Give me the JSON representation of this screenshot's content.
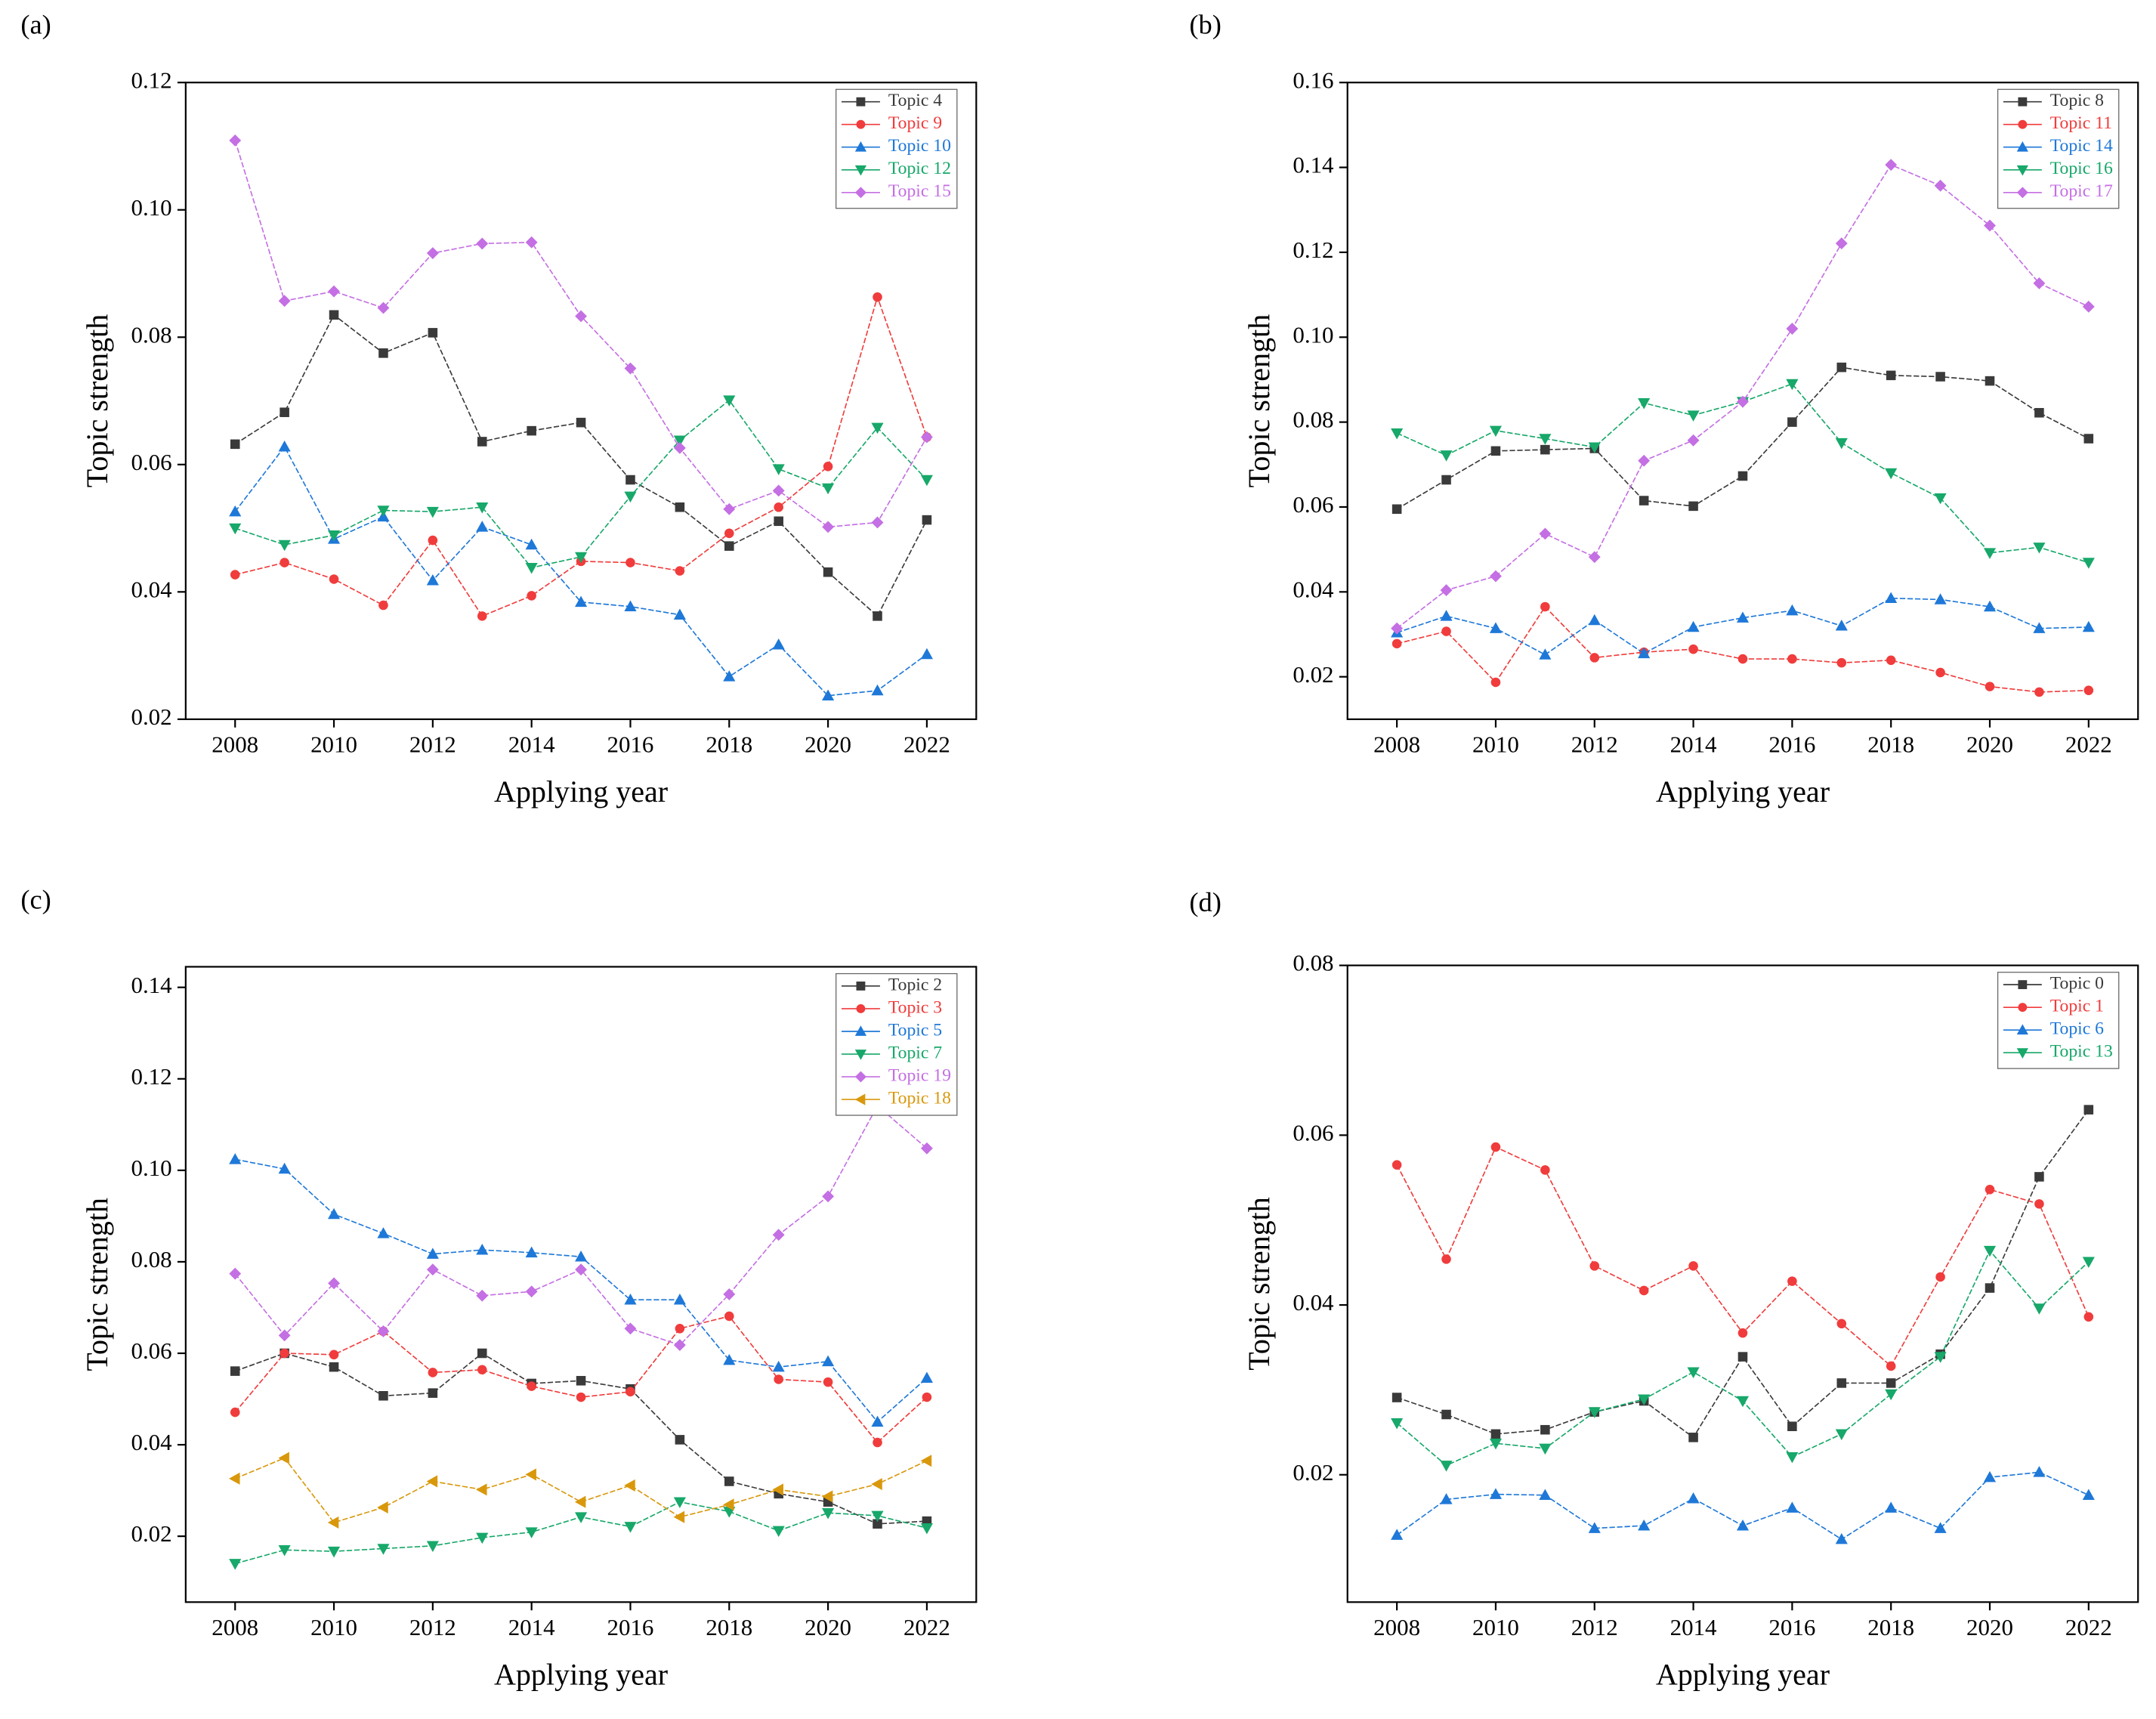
{
  "chart_data": [
    {
      "type": "line",
      "label": "(a)",
      "x_label": "Applying year",
      "y_label": "Topic strength",
      "x": [
        2008,
        2009,
        2010,
        2011,
        2012,
        2013,
        2014,
        2015,
        2016,
        2017,
        2018,
        2019,
        2020,
        2021,
        2022
      ],
      "xlim": [
        2007,
        2023
      ],
      "xticks": [
        2008,
        2010,
        2012,
        2014,
        2016,
        2018,
        2020,
        2022
      ],
      "ylim": [
        0.02,
        0.12
      ],
      "yticks": [
        0.02,
        0.04,
        0.06,
        0.08,
        {
          "value": 0.1,
          "label": "0.10"
        },
        0.12
      ],
      "legend": "upper right",
      "series": [
        {
          "name": "Topic 4",
          "color": "#3a3a3a",
          "marker": "square",
          "values": [
            0.0632,
            0.0682,
            0.0835,
            0.0775,
            0.0807,
            0.0636,
            0.0653,
            0.0666,
            0.0576,
            0.0533,
            0.0472,
            0.0511,
            0.0431,
            0.0362,
            0.0513
          ]
        },
        {
          "name": "Topic 9",
          "color": "#f03c3c",
          "marker": "circle",
          "values": [
            0.0427,
            0.0446,
            0.042,
            0.0379,
            0.0481,
            0.0362,
            0.0394,
            0.0448,
            0.0446,
            0.0433,
            0.0492,
            0.0533,
            0.0597,
            0.0863,
            0.0643
          ]
        },
        {
          "name": "Topic 10",
          "color": "#1e78d8",
          "marker": "triangle-up",
          "values": [
            0.0526,
            0.0628,
            0.0483,
            0.0518,
            0.0418,
            0.0502,
            0.0474,
            0.0384,
            0.0377,
            0.0364,
            0.0267,
            0.0317,
            0.0237,
            0.0245,
            0.0302
          ]
        },
        {
          "name": "Topic 12",
          "color": "#17a86a",
          "marker": "triangle-down",
          "values": [
            0.05,
            0.0474,
            0.0489,
            0.0528,
            0.0526,
            0.0533,
            0.0438,
            0.0455,
            0.055,
            0.0638,
            0.0701,
            0.0593,
            0.0563,
            0.0658,
            0.0576
          ]
        },
        {
          "name": "Topic 15",
          "color": "#c46fe3",
          "marker": "diamond",
          "values": [
            0.1109,
            0.0857,
            0.0872,
            0.0846,
            0.0932,
            0.0947,
            0.0949,
            0.0833,
            0.0751,
            0.0626,
            0.053,
            0.0559,
            0.0502,
            0.0509,
            0.0643
          ]
        }
      ]
    },
    {
      "type": "line",
      "label": "(b)",
      "x_label": "Applying year",
      "y_label": "Topic strength",
      "x": [
        2008,
        2009,
        2010,
        2011,
        2012,
        2013,
        2014,
        2015,
        2016,
        2017,
        2018,
        2019,
        2020,
        2021,
        2022
      ],
      "xlim": [
        2007,
        2023
      ],
      "xticks": [
        2008,
        2010,
        2012,
        2014,
        2016,
        2018,
        2020,
        2022
      ],
      "ylim": [
        0.01,
        0.16
      ],
      "yticks": [
        0.02,
        0.04,
        0.06,
        0.08,
        {
          "value": 0.1,
          "label": "0.10"
        },
        0.12,
        0.14,
        0.16
      ],
      "legend": "upper right",
      "series": [
        {
          "name": "Topic 8",
          "color": "#3a3a3a",
          "marker": "square",
          "values": [
            0.0595,
            0.0664,
            0.0732,
            0.0735,
            0.0738,
            0.0615,
            0.0602,
            0.0673,
            0.08,
            0.0929,
            0.091,
            0.0907,
            0.0897,
            0.0822,
            0.0761
          ]
        },
        {
          "name": "Topic 11",
          "color": "#f03c3c",
          "marker": "circle",
          "values": [
            0.0278,
            0.0307,
            0.0187,
            0.0365,
            0.0245,
            0.0258,
            0.0265,
            0.0242,
            0.0242,
            0.0233,
            0.0239,
            0.021,
            0.0177,
            0.0164,
            0.0168
          ]
        },
        {
          "name": "Topic 14",
          "color": "#1e78d8",
          "marker": "triangle-up",
          "values": [
            0.0304,
            0.0343,
            0.0314,
            0.0252,
            0.0333,
            0.0255,
            0.0317,
            0.0339,
            0.0356,
            0.032,
            0.0385,
            0.0382,
            0.0365,
            0.0314,
            0.0317
          ]
        },
        {
          "name": "Topic 16",
          "color": "#17a86a",
          "marker": "triangle-down",
          "values": [
            0.0774,
            0.0722,
            0.078,
            0.0761,
            0.0741,
            0.0845,
            0.0816,
            0.0848,
            0.089,
            0.0751,
            0.068,
            0.0621,
            0.0492,
            0.0505,
            0.0469
          ]
        },
        {
          "name": "Topic 17",
          "color": "#c46fe3",
          "marker": "diamond",
          "values": [
            0.0314,
            0.0404,
            0.0437,
            0.0537,
            0.0482,
            0.0709,
            0.0757,
            0.0848,
            0.102,
            0.1221,
            0.1406,
            0.1357,
            0.1263,
            0.1127,
            0.1072
          ]
        }
      ]
    },
    {
      "type": "line",
      "label": "(c)",
      "x_label": "Applying year",
      "y_label": "Topic strength",
      "x": [
        2008,
        2009,
        2010,
        2011,
        2012,
        2013,
        2014,
        2015,
        2016,
        2017,
        2018,
        2019,
        2020,
        2021,
        2022
      ],
      "xlim": [
        2007,
        2023
      ],
      "xticks": [
        2008,
        2010,
        2012,
        2014,
        2016,
        2018,
        2020,
        2022
      ],
      "ylim": [
        0.0056,
        0.1445
      ],
      "yticks": [
        0.02,
        0.04,
        0.06,
        0.08,
        {
          "value": 0.1,
          "label": "0.10"
        },
        0.12,
        0.14
      ],
      "legend": "upper right",
      "series": [
        {
          "name": "Topic 2",
          "color": "#3a3a3a",
          "marker": "square",
          "values": [
            0.0561,
            0.06,
            0.057,
            0.0507,
            0.0513,
            0.06,
            0.0534,
            0.054,
            0.0522,
            0.0411,
            0.032,
            0.0293,
            0.0275,
            0.0227,
            0.0233
          ]
        },
        {
          "name": "Topic 3",
          "color": "#f03c3c",
          "marker": "circle",
          "values": [
            0.0471,
            0.06,
            0.0597,
            0.0648,
            0.0558,
            0.0564,
            0.0528,
            0.0504,
            0.0516,
            0.0654,
            0.0681,
            0.0543,
            0.0537,
            0.0405,
            0.0504
          ]
        },
        {
          "name": "Topic 5",
          "color": "#1e78d8",
          "marker": "triangle-up",
          "values": [
            0.1024,
            0.1003,
            0.0904,
            0.0862,
            0.0817,
            0.0826,
            0.082,
            0.0811,
            0.0717,
            0.0717,
            0.0585,
            0.057,
            0.0582,
            0.045,
            0.0546
          ]
        },
        {
          "name": "Topic 7",
          "color": "#17a86a",
          "marker": "triangle-down",
          "values": [
            0.014,
            0.017,
            0.0167,
            0.0173,
            0.0179,
            0.0197,
            0.0209,
            0.0242,
            0.0221,
            0.0275,
            0.0254,
            0.0212,
            0.0251,
            0.0245,
            0.0218
          ]
        },
        {
          "name": "Topic 19",
          "color": "#c46fe3",
          "marker": "diamond",
          "values": [
            0.0774,
            0.0639,
            0.0753,
            0.0648,
            0.0783,
            0.0726,
            0.0735,
            0.0783,
            0.0654,
            0.0618,
            0.0729,
            0.0859,
            0.0943,
            0.1141,
            0.1048
          ]
        },
        {
          "name": "Topic 18",
          "color": "#d9980c",
          "marker": "triangle-left",
          "values": [
            0.0326,
            0.0371,
            0.023,
            0.0263,
            0.032,
            0.0302,
            0.0335,
            0.0275,
            0.0311,
            0.0242,
            0.0269,
            0.0302,
            0.0287,
            0.0314,
            0.0365
          ]
        }
      ]
    },
    {
      "type": "line",
      "label": "(d)",
      "x_label": "Applying year",
      "y_label": "Topic strength",
      "x": [
        2008,
        2009,
        2010,
        2011,
        2012,
        2013,
        2014,
        2015,
        2016,
        2017,
        2018,
        2019,
        2020,
        2021,
        2022
      ],
      "xlim": [
        2007,
        2023
      ],
      "xticks": [
        2008,
        2010,
        2012,
        2014,
        2016,
        2018,
        2020,
        2022
      ],
      "ylim": [
        0.005,
        0.08
      ],
      "yticks": [
        0.02,
        0.04,
        0.06,
        0.08
      ],
      "legend": "upper right",
      "series": [
        {
          "name": "Topic 0",
          "color": "#3a3a3a",
          "marker": "square",
          "values": [
            0.0291,
            0.0271,
            0.0248,
            0.0253,
            0.0274,
            0.0287,
            0.0244,
            0.0339,
            0.0257,
            0.0308,
            0.0308,
            0.0342,
            0.042,
            0.0551,
            0.063
          ]
        },
        {
          "name": "Topic 1",
          "color": "#f03c3c",
          "marker": "circle",
          "values": [
            0.0565,
            0.0454,
            0.0586,
            0.0559,
            0.0446,
            0.0417,
            0.0446,
            0.0367,
            0.0428,
            0.0378,
            0.0328,
            0.0433,
            0.0536,
            0.0519,
            0.0386
          ]
        },
        {
          "name": "Topic 6",
          "color": "#1e78d8",
          "marker": "triangle-up",
          "values": [
            0.0129,
            0.0171,
            0.0177,
            0.0176,
            0.0137,
            0.014,
            0.0172,
            0.014,
            0.0161,
            0.0124,
            0.0161,
            0.0137,
            0.0197,
            0.0203,
            0.0176
          ]
        },
        {
          "name": "Topic 13",
          "color": "#17a86a",
          "marker": "triangle-down",
          "values": [
            0.0261,
            0.0211,
            0.0237,
            0.0231,
            0.0274,
            0.0289,
            0.0321,
            0.0287,
            0.0221,
            0.0248,
            0.0295,
            0.0339,
            0.0464,
            0.0396,
            0.0451
          ]
        }
      ]
    }
  ]
}
